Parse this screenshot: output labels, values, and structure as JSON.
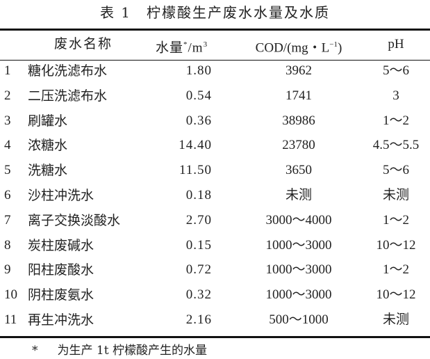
{
  "title": "表 1　柠檬酸生产废水水量及水质",
  "headers": {
    "no": "",
    "name": "废水名称",
    "volume": "水量",
    "volume_mark": "*",
    "volume_unit": "/m",
    "volume_sup": "3",
    "cod": "COD/(mg・L",
    "cod_sup": "−1",
    "cod_close": ")",
    "ph": "pH"
  },
  "rows": [
    {
      "no": "1",
      "name": "糖化洗滤布水",
      "volume": "1.80",
      "cod": "3962",
      "ph": "5～6"
    },
    {
      "no": "2",
      "name": "二压洗滤布水",
      "volume": "0.54",
      "cod": "1741",
      "ph": "3"
    },
    {
      "no": "3",
      "name": "刷罐水",
      "volume": "0.36",
      "cod": "38986",
      "ph": "1～2"
    },
    {
      "no": "4",
      "name": "浓糖水",
      "volume": "14.40",
      "cod": "23780",
      "ph": "4.5～5.5"
    },
    {
      "no": "5",
      "name": "洗糖水",
      "volume": "11.50",
      "cod": "3650",
      "ph": "5～6"
    },
    {
      "no": "6",
      "name": "沙柱冲洗水",
      "volume": "0.18",
      "cod": "未测",
      "ph": "未测"
    },
    {
      "no": "7",
      "name": "离子交换淡酸水",
      "volume": "2.70",
      "cod": "3000～4000",
      "ph": "1～2"
    },
    {
      "no": "8",
      "name": "炭柱废碱水",
      "volume": "0.15",
      "cod": "1000～3000",
      "ph": "10～12"
    },
    {
      "no": "9",
      "name": "阳柱废酸水",
      "volume": "0.72",
      "cod": "1000～3000",
      "ph": "1～2"
    },
    {
      "no": "10",
      "name": "阴柱废氨水",
      "volume": "0.32",
      "cod": "1000～3000",
      "ph": "10～12"
    },
    {
      "no": "11",
      "name": "再生冲洗水",
      "volume": "2.16",
      "cod": "500～1000",
      "ph": "未测"
    }
  ],
  "footnote": {
    "mark": "*",
    "text": "为生产 1t 柠檬酸产生的水量"
  }
}
